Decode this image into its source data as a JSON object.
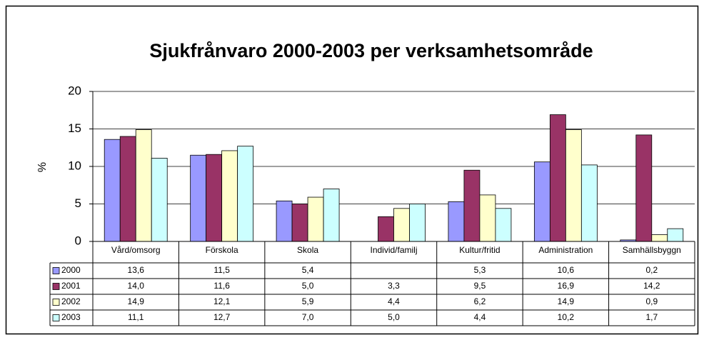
{
  "chart_data": {
    "type": "bar",
    "title": "Sjukfrånvaro 2000-2003 per verksamhetsområde",
    "y_label": "%",
    "categories": [
      "Vård/omsorg",
      "Förskola",
      "Skola",
      "Individ/familj",
      "Kultur/fritid",
      "Administration",
      "Samhällsbyggn"
    ],
    "series": [
      {
        "name": "2000",
        "color": "#9999ff",
        "values": [
          13.6,
          11.5,
          5.4,
          null,
          5.3,
          10.6,
          0.2
        ],
        "value_labels": [
          "13,6",
          "11,5",
          "5,4",
          null,
          "5,3",
          "10,6",
          "0,2"
        ]
      },
      {
        "name": "2001",
        "color": "#993366",
        "values": [
          14.0,
          11.6,
          5.0,
          3.3,
          9.5,
          16.9,
          14.2
        ],
        "value_labels": [
          "14,0",
          "11,6",
          "5,0",
          "3,3",
          "9,5",
          "16,9",
          "14,2"
        ]
      },
      {
        "name": "2002",
        "color": "#ffffcc",
        "values": [
          14.9,
          12.1,
          5.9,
          4.4,
          6.2,
          14.9,
          0.9
        ],
        "value_labels": [
          "14,9",
          "12,1",
          "5,9",
          "4,4",
          "6,2",
          "14,9",
          "0,9"
        ]
      },
      {
        "name": "2003",
        "color": "#ccffff",
        "values": [
          11.1,
          12.7,
          7.0,
          5.0,
          4.4,
          10.2,
          1.7
        ],
        "value_labels": [
          "11,1",
          "12,7",
          "7,0",
          "5,0",
          "4,4",
          "10,2",
          "1,7"
        ]
      }
    ],
    "ylim": [
      0,
      20
    ],
    "yticks": [
      0,
      5,
      10,
      15,
      20
    ],
    "grid": true
  }
}
